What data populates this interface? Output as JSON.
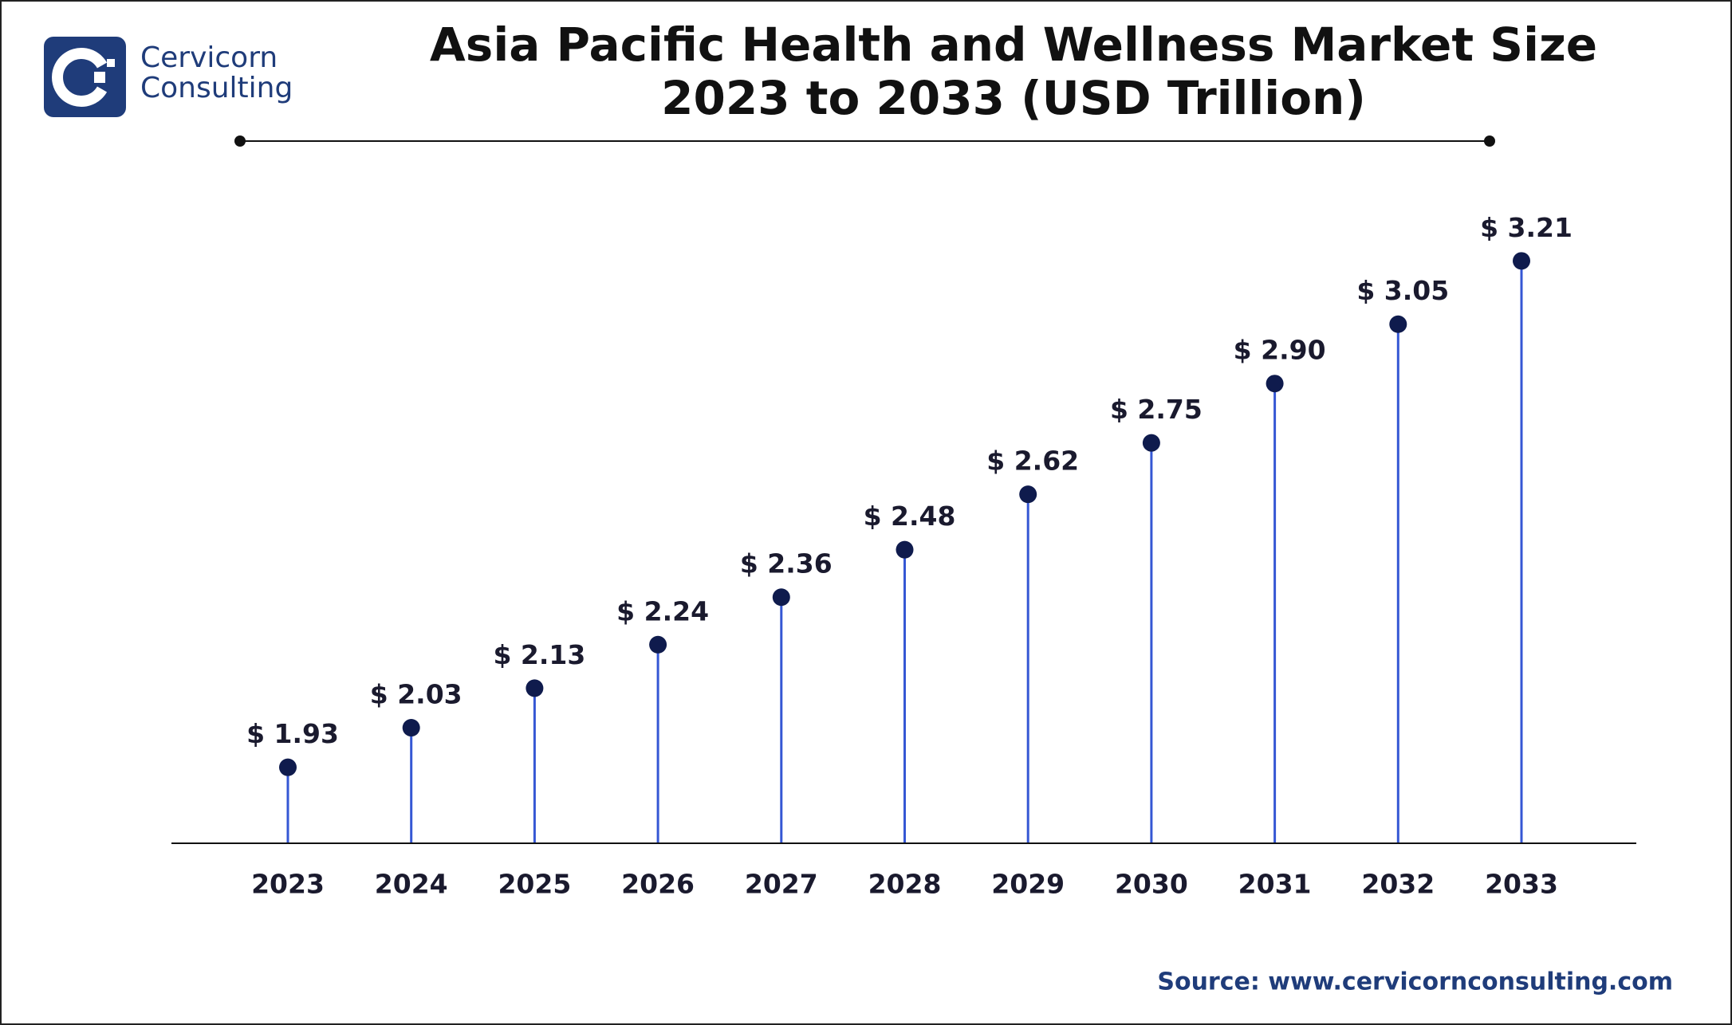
{
  "logo": [
    "Cervicorn",
    "Consulting"
  ],
  "chart_data": {
    "type": "lollipop",
    "title": "Asia Pacific Health and Wellness Market Size",
    "subtitle": "2023 to 2033 (USD Trillion)",
    "categories": [
      "2023",
      "2024",
      "2025",
      "2026",
      "2027",
      "2028",
      "2029",
      "2030",
      "2031",
      "2032",
      "2033"
    ],
    "values": [
      1.93,
      2.03,
      2.13,
      2.24,
      2.36,
      2.48,
      2.62,
      2.75,
      2.9,
      3.05,
      3.21
    ],
    "value_labels": [
      "$ 1.93",
      "$ 2.03",
      "$ 2.13",
      "$ 2.24",
      "$ 2.36",
      "$ 2.48",
      "$ 2.62",
      "$ 2.75",
      "$ 2.90",
      "$ 3.05",
      "$ 3.21"
    ],
    "ylim": [
      1.74,
      3.4
    ],
    "stem_color": "#3557d4",
    "dot_color": "#0f1b4d",
    "source": "Source: www.cervicornconsulting.com"
  }
}
